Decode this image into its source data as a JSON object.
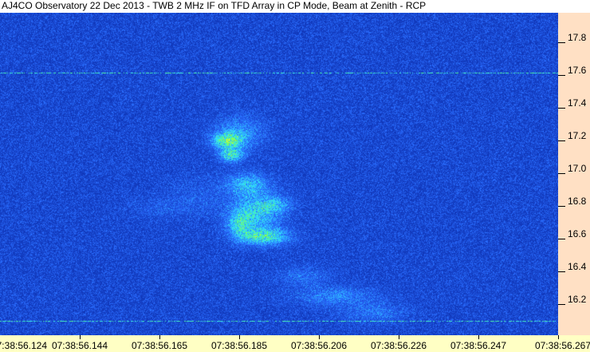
{
  "title": "AJ4CO Observatory 22 Dec 2013 - TWB 2 MHz IF on TFD Array in CP Mode, Beam at Zenith - RCP",
  "chart_data": {
    "type": "heatmap",
    "title": "AJ4CO Observatory 22 Dec 2013 - TWB 2 MHz IF on TFD Array in CP Mode, Beam at Zenith - RCP",
    "xlabel": "",
    "ylabel": "",
    "x_tick_labels": [
      "07:38:56.124",
      "07:38:56.144",
      "07:38:56.165",
      "07:38:56.185",
      "07:38:56.206",
      "07:38:56.226",
      "07:38:56.247",
      "07:38:56.267"
    ],
    "xlim_seconds": [
      56.124,
      56.267
    ],
    "y_ticks": [
      17.8,
      17.6,
      17.4,
      17.2,
      17.0,
      16.8,
      16.6,
      16.4,
      16.2
    ],
    "y_tick_labels": [
      "17.8",
      "17.6",
      "17.4",
      "17.2",
      "17.0",
      "16.8",
      "16.6",
      "16.4",
      "16.2"
    ],
    "ylim": [
      16.01,
      17.98
    ],
    "grid": false,
    "colormap": [
      "#0a2aa8",
      "#2a6cff",
      "#30e0ff",
      "#60ff70",
      "#ffff00"
    ],
    "colors": {
      "axis_x_bg": "#ffffc4",
      "axis_y_bg": "#ffe0c4"
    }
  }
}
